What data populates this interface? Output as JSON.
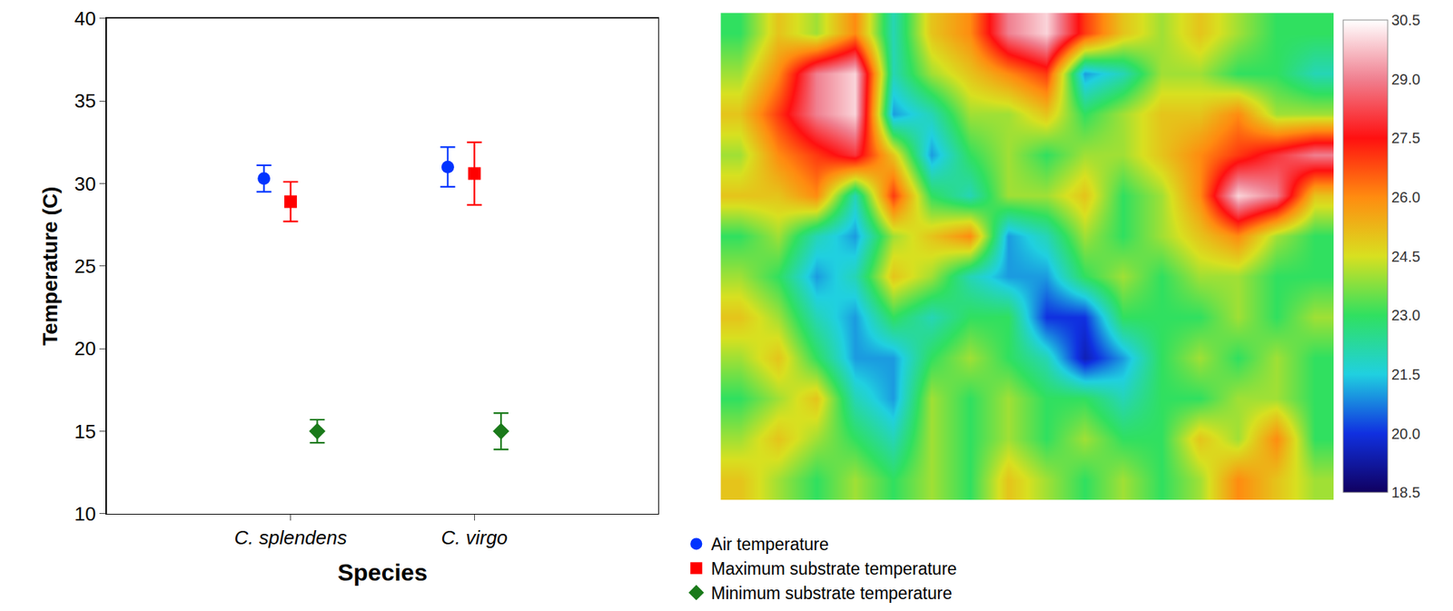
{
  "chart_data": [
    {
      "type": "scatter",
      "x_label": "Species",
      "y_label": "Temperature (C)",
      "categories": [
        "C. splendens",
        "C. virgo"
      ],
      "ylim": [
        10,
        40
      ],
      "yticks": [
        10,
        15,
        20,
        25,
        30,
        35,
        40
      ],
      "grid": false,
      "legend": "bottom",
      "series": [
        {
          "name": "Air temperature",
          "color": "#0033ff",
          "marker": "circle",
          "values": [
            30.3,
            31.0
          ],
          "errors": [
            0.8,
            1.2
          ]
        },
        {
          "name": "Maximum substrate temperature",
          "color": "#ff0000",
          "marker": "square",
          "values": [
            28.9,
            30.6
          ],
          "errors": [
            1.2,
            1.9
          ]
        },
        {
          "name": "Minimum substrate temperature",
          "color": "#1a7a1a",
          "marker": "diamond",
          "values": [
            15.0,
            15.0
          ],
          "errors": [
            0.7,
            1.1
          ]
        }
      ]
    },
    {
      "type": "heatmap",
      "tick_labels": false,
      "zlim": [
        18.5,
        30.5
      ],
      "colorbar_ticks": [
        30.5,
        {
          "value": 29,
          "label": "29.0"
        },
        27.5,
        {
          "value": 26,
          "label": "26.0"
        },
        24.5,
        {
          "value": 23,
          "label": "23.0"
        },
        21.5,
        {
          "value": 20,
          "label": "20.0"
        },
        18.5
      ],
      "cells": [
        [
          23,
          25,
          24,
          26,
          22,
          25,
          26,
          29,
          30,
          27,
          25,
          24,
          25,
          24,
          23,
          23
        ],
        [
          24,
          26,
          29,
          30,
          22,
          24,
          25,
          26,
          27,
          21,
          22,
          24,
          24,
          23,
          23,
          22
        ],
        [
          25,
          27,
          29,
          30,
          21,
          22,
          24,
          24,
          25,
          23,
          24,
          25,
          25,
          26,
          24,
          24
        ],
        [
          24,
          26,
          27,
          28,
          25,
          21,
          23,
          24,
          23,
          24,
          24,
          25,
          26,
          27,
          28,
          29
        ],
        [
          25,
          25,
          26,
          22,
          27,
          23,
          22,
          24,
          24,
          25,
          23,
          24,
          26,
          30,
          29,
          25
        ],
        [
          23,
          24,
          22,
          21,
          24,
          25,
          26,
          21,
          22,
          24,
          23,
          24,
          25,
          26,
          24,
          23
        ],
        [
          24,
          23,
          21,
          22,
          25,
          24,
          22,
          21,
          21,
          23,
          24,
          23,
          24,
          24,
          23,
          23
        ],
        [
          25,
          24,
          22,
          21,
          23,
          22,
          23,
          23,
          20,
          20,
          23,
          23,
          23,
          24,
          23,
          24
        ],
        [
          24,
          25,
          23,
          21,
          21,
          23,
          24,
          23,
          22,
          19.5,
          21,
          23,
          24,
          23,
          24,
          23
        ],
        [
          23,
          24,
          25,
          22,
          21,
          24,
          23,
          24,
          23,
          23,
          22,
          23,
          23,
          24,
          24,
          23
        ],
        [
          24,
          25,
          24,
          23,
          22,
          24,
          23,
          24,
          23,
          24,
          23,
          23,
          25,
          24,
          26,
          23
        ],
        [
          25,
          24,
          23,
          24,
          23,
          24,
          23,
          25,
          24,
          23,
          24,
          23,
          24,
          26,
          25,
          24
        ]
      ]
    }
  ]
}
